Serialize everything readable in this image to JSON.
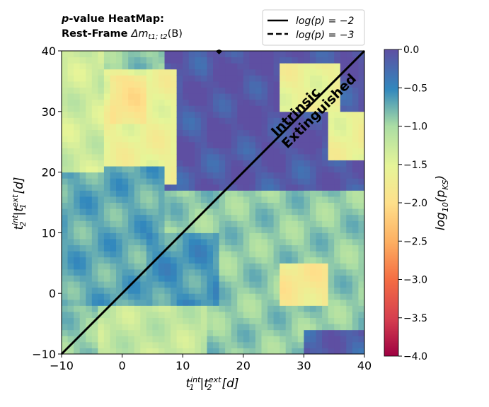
{
  "title": {
    "line1_italic": "p",
    "line1_rest": "-value HeatMap:",
    "line2_bold": "Rest-Frame ",
    "line2_math": "Δm",
    "line2_sub": "t1; t2",
    "line2_tail": "(B)"
  },
  "legend": [
    {
      "label": "log(p) = −2",
      "style": "solid"
    },
    {
      "label": "log(p) = −3",
      "style": "dashed"
    }
  ],
  "annotations": {
    "upper": "Intrinsic",
    "lower": "Extinguished"
  },
  "axes": {
    "x_label_main": "t",
    "x_label_sup1": "int",
    "x_label_sub1": "1",
    "x_label_sep": "|t",
    "x_label_sup2": "ext",
    "x_label_sub2": "2",
    "x_label_tail": "[d]",
    "y_label_main": "t",
    "y_label_sup1": "int",
    "y_label_sub1": "2",
    "y_label_sep": "|t",
    "y_label_sup2": "ext",
    "y_label_sub2": "1",
    "y_label_tail": "[d]"
  },
  "colorbar": {
    "label": "log₁₀(p_KS)",
    "label_main": "log",
    "label_sub": "10",
    "label_open": "(p",
    "label_sub2": "KS",
    "label_close": ")",
    "ticks": [
      "0.0",
      "−0.5",
      "−1.0",
      "−1.5",
      "−2.0",
      "−2.5",
      "−3.0",
      "−3.5",
      "−4.0"
    ],
    "range": [
      -4.0,
      0.0
    ],
    "colormap": "Spectral"
  },
  "chart_data": {
    "type": "heatmap",
    "x_range": [
      -10,
      40
    ],
    "y_range": [
      -10,
      40
    ],
    "x_ticks": [
      -10,
      0,
      10,
      20,
      30,
      40
    ],
    "y_ticks": [
      -10,
      0,
      10,
      20,
      30,
      40
    ],
    "x_tick_labels": [
      "−10",
      "0",
      "10",
      "20",
      "30",
      "40"
    ],
    "y_tick_labels": [
      "−10",
      "0",
      "10",
      "20",
      "30",
      "40"
    ],
    "value_range": [
      -4.0,
      0.0
    ],
    "grid": false,
    "legend_position": "top-right",
    "diagonal_line": {
      "x": [
        -10,
        40
      ],
      "y": [
        -10,
        40
      ],
      "color": "#000000"
    },
    "contour_markers": [
      {
        "x": 16,
        "y": 40,
        "level": -2
      }
    ],
    "regions": [
      {
        "x": [
          7,
          40
        ],
        "y": [
          17,
          40
        ],
        "value": -0.1
      },
      {
        "x": [
          14,
          34
        ],
        "y": [
          24,
          40
        ],
        "value": -0.05
      },
      {
        "x": [
          -4,
          9
        ],
        "y": [
          18,
          37
        ],
        "value": -1.6
      },
      {
        "x": [
          -2,
          4
        ],
        "y": [
          28,
          36
        ],
        "value": -1.9
      },
      {
        "x": [
          -10,
          7
        ],
        "y": [
          -2,
          21
        ],
        "value": -0.7
      },
      {
        "x": [
          26,
          36
        ],
        "y": [
          30,
          38
        ],
        "value": -1.6
      },
      {
        "x": [
          34,
          40
        ],
        "y": [
          22,
          30
        ],
        "value": -1.6
      },
      {
        "x": [
          20,
          40
        ],
        "y": [
          -10,
          17
        ],
        "value": -0.9
      },
      {
        "x": [
          26,
          34
        ],
        "y": [
          -2,
          5
        ],
        "value": -1.8
      },
      {
        "x": [
          -4,
          14
        ],
        "y": [
          -10,
          -2
        ],
        "value": -1.2
      },
      {
        "x": [
          4,
          16
        ],
        "y": [
          -2,
          10
        ],
        "value": -0.6
      },
      {
        "x": [
          30,
          40
        ],
        "y": [
          -10,
          -6
        ],
        "value": -0.15
      },
      {
        "x": [
          -10,
          -3
        ],
        "y": [
          20,
          40
        ],
        "value": -1.3
      }
    ],
    "base_value": -0.9
  }
}
